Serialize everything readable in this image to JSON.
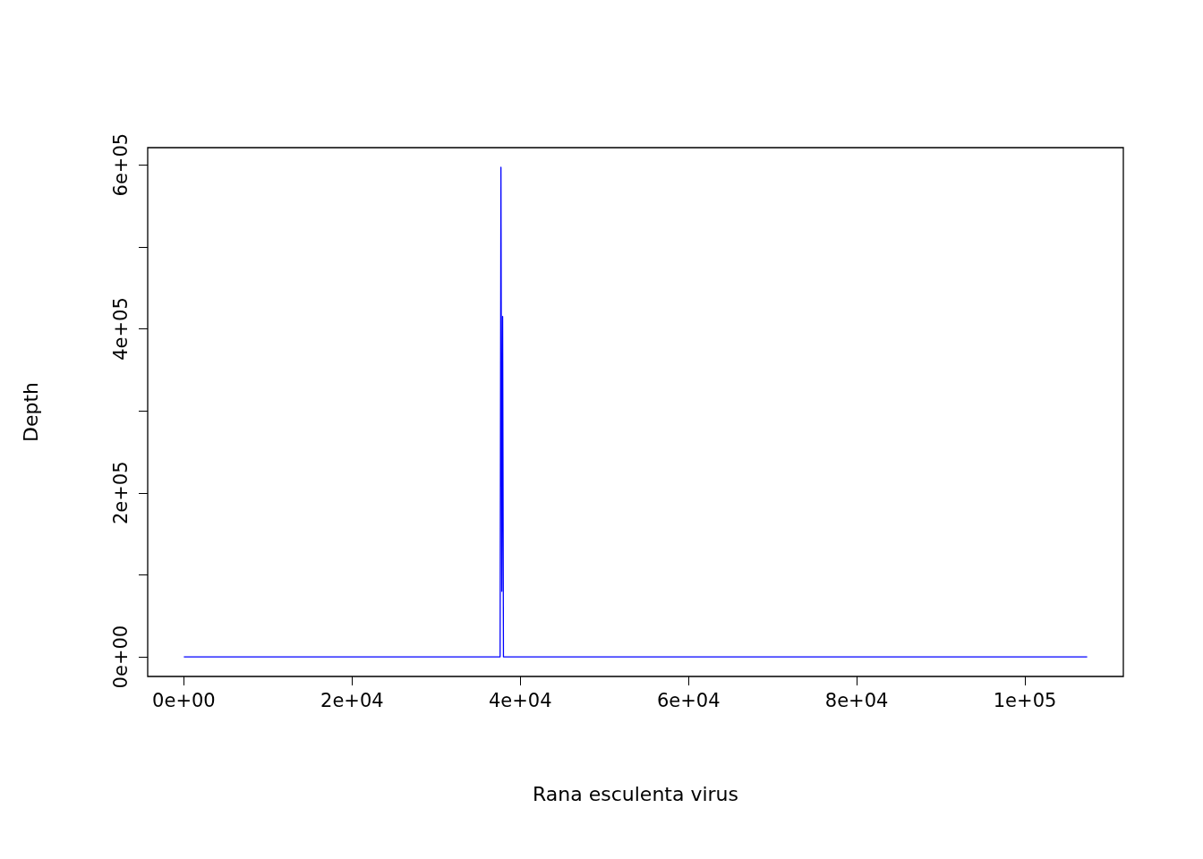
{
  "chart_data": {
    "type": "line",
    "xlabel": "Rana esculenta virus",
    "ylabel": "Depth",
    "x": [
      0,
      37600,
      37700,
      37800,
      37900,
      38000,
      107400
    ],
    "series": [
      {
        "color": "#0000ff",
        "values": [
          0,
          0,
          597000,
          80000,
          415000,
          0,
          0
        ]
      }
    ],
    "xlim": [
      -4300,
      111700
    ],
    "ylim": [
      -23900,
      620900
    ],
    "xticks": [
      {
        "value": 0,
        "label": "0e+00"
      },
      {
        "value": 20000,
        "label": "2e+04"
      },
      {
        "value": 40000,
        "label": "4e+04"
      },
      {
        "value": 60000,
        "label": "6e+04"
      },
      {
        "value": 80000,
        "label": "8e+04"
      },
      {
        "value": 100000,
        "label": "1e+05"
      }
    ],
    "yticks": [
      {
        "value": 0,
        "label": "0e+00"
      },
      {
        "value": 100000,
        "label": null
      },
      {
        "value": 200000,
        "label": "2e+05"
      },
      {
        "value": 300000,
        "label": null
      },
      {
        "value": 400000,
        "label": "4e+05"
      },
      {
        "value": 500000,
        "label": null
      },
      {
        "value": 600000,
        "label": "6e+05"
      }
    ],
    "grid": false,
    "marker": "none",
    "line_style": "solid"
  }
}
